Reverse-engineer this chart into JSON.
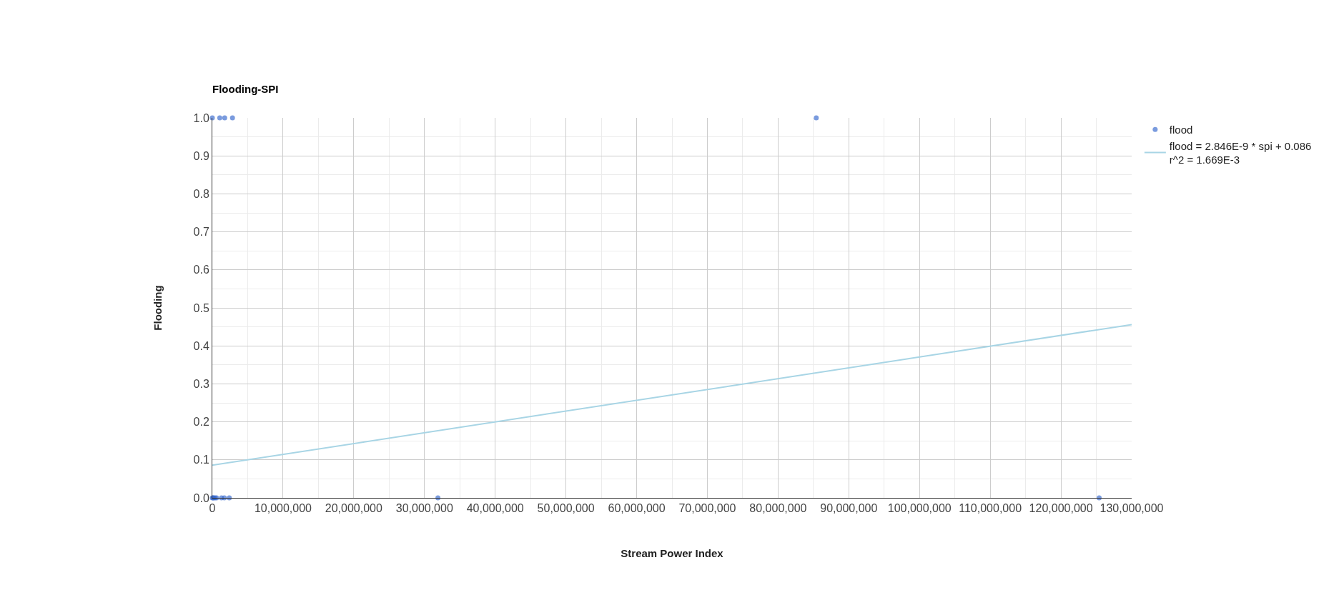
{
  "chart_data": {
    "type": "scatter",
    "title": "Flooding-SPI",
    "xlabel": "Stream Power Index",
    "ylabel": "Flooding",
    "series": [
      {
        "name": "flood",
        "color": "#3366cc",
        "marker": "circle",
        "x": [
          0,
          1050000,
          1750000,
          2850000,
          85400000,
          0,
          100000,
          200000,
          400000,
          600000,
          1300000,
          1700000,
          2400000,
          31900000,
          125400000
        ],
        "values": [
          1,
          1,
          1,
          1,
          1,
          0,
          0,
          0,
          0,
          0,
          0,
          0,
          0,
          0,
          0
        ]
      },
      {
        "name": "flood = 2.846E-9 * spi + 0.086\nr^2 = 1.669E-3",
        "type": "line",
        "color": "#a8d5e5",
        "line_style": "solid",
        "x": [
          0,
          130000000
        ],
        "values": [
          0.086,
          0.456
        ]
      }
    ],
    "xlim": [
      0,
      130000000
    ],
    "xticks": [
      0,
      {
        "value": 10000000,
        "label": "10,000,000"
      },
      {
        "value": 20000000,
        "label": "20,000,000"
      },
      {
        "value": 30000000,
        "label": "30,000,000"
      },
      {
        "value": 40000000,
        "label": "40,000,000"
      },
      {
        "value": 50000000,
        "label": "50,000,000"
      },
      {
        "value": 60000000,
        "label": "60,000,000"
      },
      {
        "value": 70000000,
        "label": "70,000,000"
      },
      {
        "value": 80000000,
        "label": "80,000,000"
      },
      {
        "value": 90000000,
        "label": "90,000,000"
      },
      {
        "value": 100000000,
        "label": "100,000,000"
      },
      {
        "value": 110000000,
        "label": "110,000,000"
      },
      {
        "value": 120000000,
        "label": "120,000,000"
      },
      {
        "value": 130000000,
        "label": "130,000,000"
      }
    ],
    "ylim": [
      0,
      1
    ],
    "yticks": [
      {
        "value": 0,
        "label": "0.0"
      },
      {
        "value": 0.1,
        "label": "0.1"
      },
      {
        "value": 0.2,
        "label": "0.2"
      },
      {
        "value": 0.3,
        "label": "0.3"
      },
      {
        "value": 0.4,
        "label": "0.4"
      },
      {
        "value": 0.5,
        "label": "0.5"
      },
      {
        "value": 0.6,
        "label": "0.6"
      },
      {
        "value": 0.7,
        "label": "0.7"
      },
      {
        "value": 0.8,
        "label": "0.8"
      },
      {
        "value": 0.9,
        "label": "0.9"
      },
      {
        "value": 1,
        "label": "1.0"
      }
    ],
    "grid": true,
    "legend": "top right"
  }
}
